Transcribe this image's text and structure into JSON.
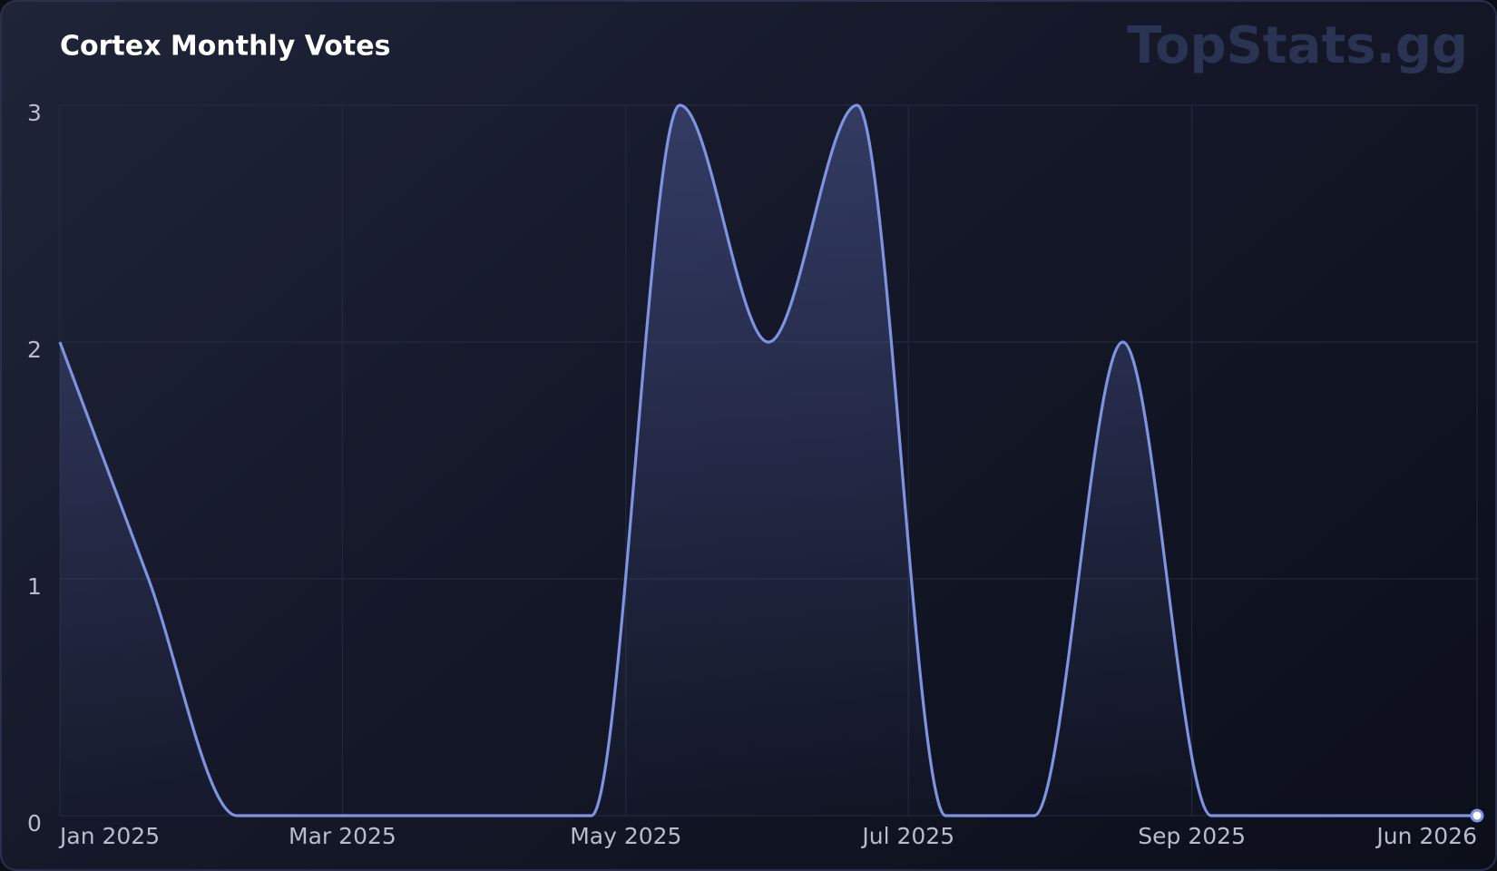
{
  "chart_data": {
    "type": "line",
    "title": "Cortex Monthly Votes",
    "watermark": "TopStats.gg",
    "values": [
      2,
      1,
      0,
      0,
      0,
      0,
      0,
      3,
      2,
      3,
      0,
      0,
      2,
      0,
      0,
      0,
      0
    ],
    "color": "#7f93e0",
    "xlim": [
      0,
      16
    ],
    "xticks": [
      {
        "value": 0,
        "label": "Jan 2025"
      },
      {
        "value": 3.19,
        "label": "Mar 2025"
      },
      {
        "value": 6.39,
        "label": "May 2025"
      },
      {
        "value": 9.58,
        "label": "Jul 2025"
      },
      {
        "value": 12.78,
        "label": "Sep 2025"
      },
      {
        "value": 16,
        "label": "Jun 2026"
      }
    ],
    "ylim": [
      0,
      3
    ],
    "yticks": [
      0,
      1,
      2,
      3
    ],
    "grid": true
  }
}
